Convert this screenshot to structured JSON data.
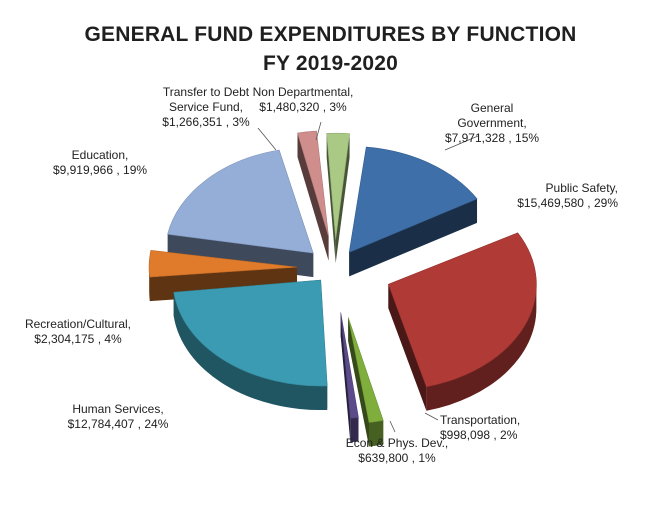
{
  "chart_data": {
    "type": "pie",
    "title": "GENERAL FUND EXPENDITURES BY FUNCTION",
    "subtitle": "FY 2019-2020",
    "slices": [
      {
        "label": "General Government",
        "label_lines": [
          "General",
          "Government,",
          "$7,971,328 , 15%"
        ],
        "value": 7971328,
        "percent": 15,
        "color": "#3e6fa8"
      },
      {
        "label": "Public Safety",
        "label_lines": [
          "Public Safety,",
          "$15,469,580 , 29%"
        ],
        "value": 15469580,
        "percent": 29,
        "color": "#b03a36"
      },
      {
        "label": "Transportation",
        "label_lines": [
          "Transportation,",
          "$998,098 , 2%"
        ],
        "value": 998098,
        "percent": 2,
        "color": "#7fae3d"
      },
      {
        "label": "Econ & Phys. Dev.",
        "label_lines": [
          "Econ & Phys. Dev.,",
          "$639,800 , 1%"
        ],
        "value": 639800,
        "percent": 1,
        "color": "#5b4b8a"
      },
      {
        "label": "Human Services",
        "label_lines": [
          "Human Services,",
          "$12,784,407 , 24%"
        ],
        "value": 12784407,
        "percent": 24,
        "color": "#3b9bb2"
      },
      {
        "label": "Recreation/Cultural",
        "label_lines": [
          "Recreation/Cultural,",
          "$2,304,175 , 4%"
        ],
        "value": 2304175,
        "percent": 4,
        "color": "#e07b2c"
      },
      {
        "label": "Education",
        "label_lines": [
          "Education,",
          "$9,919,966 , 19%"
        ],
        "value": 9919966,
        "percent": 19,
        "color": "#94aed8"
      },
      {
        "label": "Transfer to Debt Service Fund",
        "label_lines": [
          "Transfer to Debt",
          "Service Fund,",
          "$1,266,351 , 3%"
        ],
        "value": 1266351,
        "percent": 3,
        "color": "#cf8e8c"
      },
      {
        "label": "Non Departmental",
        "label_lines": [
          "Non Departmental,",
          "$1,480,320 , 3%"
        ],
        "value": 1480320,
        "percent": 3,
        "color": "#a9c984"
      }
    ],
    "style": "3d-exploded"
  }
}
